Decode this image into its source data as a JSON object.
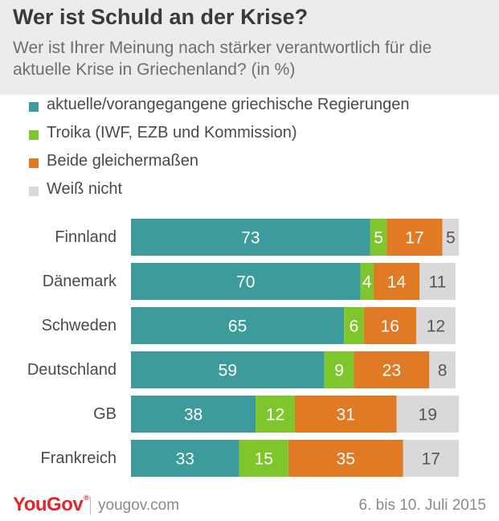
{
  "header": {
    "title": "Wer ist Schuld an der Krise?",
    "subtitle": "Wer ist Ihrer Meinung nach stärker verantwortlich für die aktuelle Krise in Griechenland? (in %)"
  },
  "legend": [
    {
      "label": "aktuelle/vorangegangene griechische Regierungen",
      "color": "#3d9b9b"
    },
    {
      "label": "Troika (IWF, EZB und Kommission)",
      "color": "#7ec62c"
    },
    {
      "label": "Beide gleichermaßen",
      "color": "#e07a25"
    },
    {
      "label": "Weiß nicht",
      "color": "#d9d9d9"
    }
  ],
  "chart_data": {
    "type": "bar",
    "orientation": "horizontal",
    "stacked": true,
    "categories": [
      "Finnland",
      "Dänemark",
      "Schweden",
      "Deutschland",
      "GB",
      "Frankreich"
    ],
    "series": [
      {
        "name": "aktuelle/vorangegangene griechische Regierungen",
        "color": "#3d9b9b",
        "label_color": "#ffffff",
        "values": [
          73,
          70,
          65,
          59,
          38,
          33
        ]
      },
      {
        "name": "Troika (IWF, EZB und Kommission)",
        "color": "#7ec62c",
        "label_color": "#ffffff",
        "values": [
          5,
          4,
          6,
          9,
          12,
          15
        ]
      },
      {
        "name": "Beide gleichermaßen",
        "color": "#e07a25",
        "label_color": "#ffffff",
        "values": [
          17,
          14,
          16,
          23,
          31,
          35
        ]
      },
      {
        "name": "Weiß nicht",
        "color": "#d9d9d9",
        "label_color": "#555555",
        "values": [
          5,
          11,
          12,
          8,
          19,
          17
        ]
      }
    ],
    "xlim": [
      0,
      100
    ],
    "title": "",
    "xlabel": "",
    "ylabel": ""
  },
  "footer": {
    "logo": "YouGov",
    "site": "yougov.com",
    "date": "6. bis 10. Juli 2015"
  }
}
